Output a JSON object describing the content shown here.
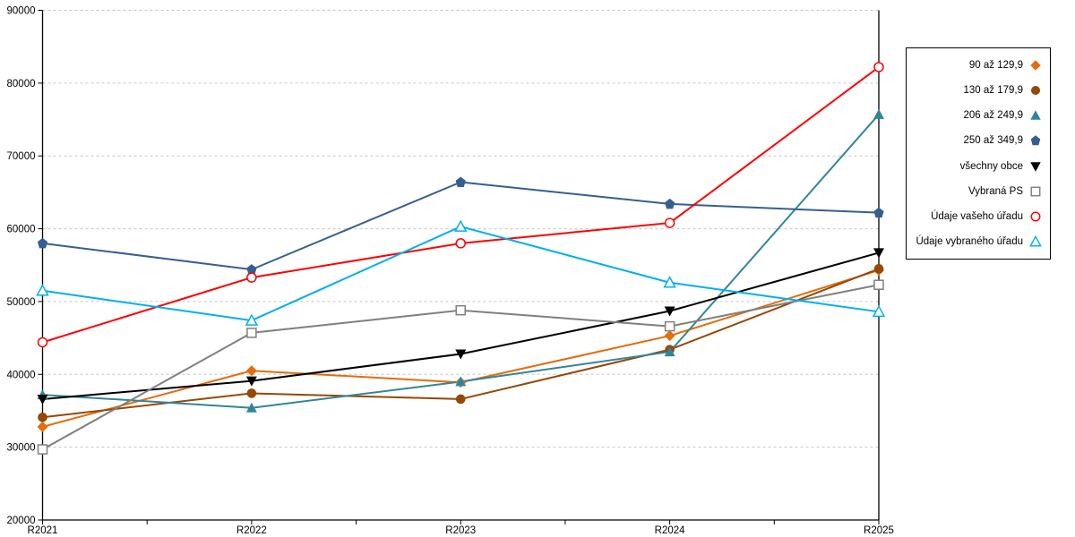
{
  "chart_data": {
    "type": "line",
    "title": "",
    "xlabel": "",
    "ylabel": "",
    "categories": [
      "R2021",
      "R2022",
      "R2023",
      "R2024",
      "R2025"
    ],
    "ylim": [
      20000,
      90000
    ],
    "ytick_step": 10000,
    "ytick_labels": [
      "20000",
      "30000",
      "40000",
      "50000",
      "60000",
      "70000",
      "80000",
      "90000"
    ],
    "grid": "horizontal-dashed",
    "grid_color": "#c6c6c6",
    "axis_color": "#000000",
    "legend_position": "right",
    "series": [
      {
        "name": "90 až 129,9",
        "marker": "diamond",
        "fill": "filled",
        "color": "#E46C0A",
        "values": [
          32800,
          40500,
          38900,
          45300,
          54300
        ]
      },
      {
        "name": "130 až 179,9",
        "marker": "circle",
        "fill": "filled",
        "color": "#974706",
        "values": [
          34100,
          37400,
          36600,
          43400,
          54500
        ]
      },
      {
        "name": "206 až 249,9",
        "marker": "triangle-up",
        "fill": "filled",
        "color": "#31859B",
        "values": [
          37200,
          35400,
          39000,
          43100,
          75700
        ]
      },
      {
        "name": "250 až 349,9",
        "marker": "pentagon",
        "fill": "filled",
        "color": "#365F91",
        "values": [
          58000,
          54400,
          66400,
          63400,
          62200
        ]
      },
      {
        "name": "všechny obce",
        "marker": "triangle-down",
        "fill": "filled",
        "color": "#000000",
        "values": [
          36600,
          39100,
          42800,
          48700,
          56700
        ]
      },
      {
        "name": "Vybraná PS",
        "marker": "square",
        "fill": "open",
        "color": "#7F7F7F",
        "values": [
          29700,
          45700,
          48800,
          46600,
          52300
        ]
      },
      {
        "name": "Údaje vašeho úřadu",
        "marker": "circle",
        "fill": "open",
        "color": "#FF0000",
        "values": [
          44400,
          53300,
          58000,
          60800,
          82200
        ]
      },
      {
        "name": "Údaje vybraného úřadu",
        "marker": "triangle-up",
        "fill": "open",
        "color": "#00B0F0",
        "values": [
          51500,
          47400,
          60300,
          52600,
          48600
        ]
      }
    ]
  }
}
